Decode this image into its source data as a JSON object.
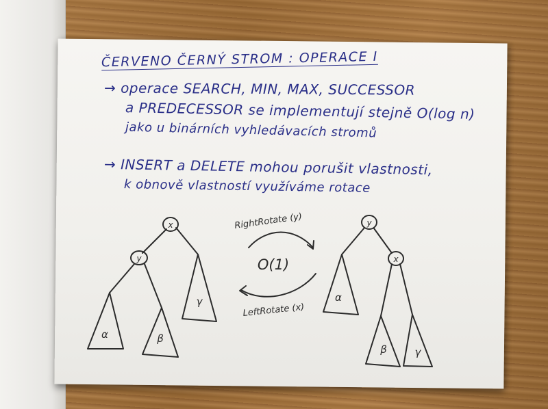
{
  "notebook": {
    "title": "ČERVENO ČERNÝ STROM : OPERACE I",
    "lines": [
      "→ operace SEARCH, MIN, MAX, SUCCESSOR",
      "a PREDECESSOR se implementují stejně O(log n)",
      "jako u binárních vyhledávacích stromů",
      "→ INSERT a DELETE mohou porušit vlastnosti,",
      "k obnově vlastností využíváme rotace"
    ]
  },
  "diagram": {
    "left_tree": {
      "root": "x",
      "child": "y",
      "subtrees": [
        "α",
        "β",
        "γ"
      ]
    },
    "right_tree": {
      "root": "y",
      "child": "x",
      "subtrees": [
        "α",
        "β",
        "γ"
      ]
    },
    "right_rotate_label": "RightRotate (y)",
    "left_rotate_label": "LeftRotate (x)",
    "complexity": "O(1)"
  },
  "colors": {
    "ink": "#2a2f88",
    "pencil": "#2b2b2b",
    "paper": "#f3f2ef",
    "desk": "#9a6a35"
  }
}
